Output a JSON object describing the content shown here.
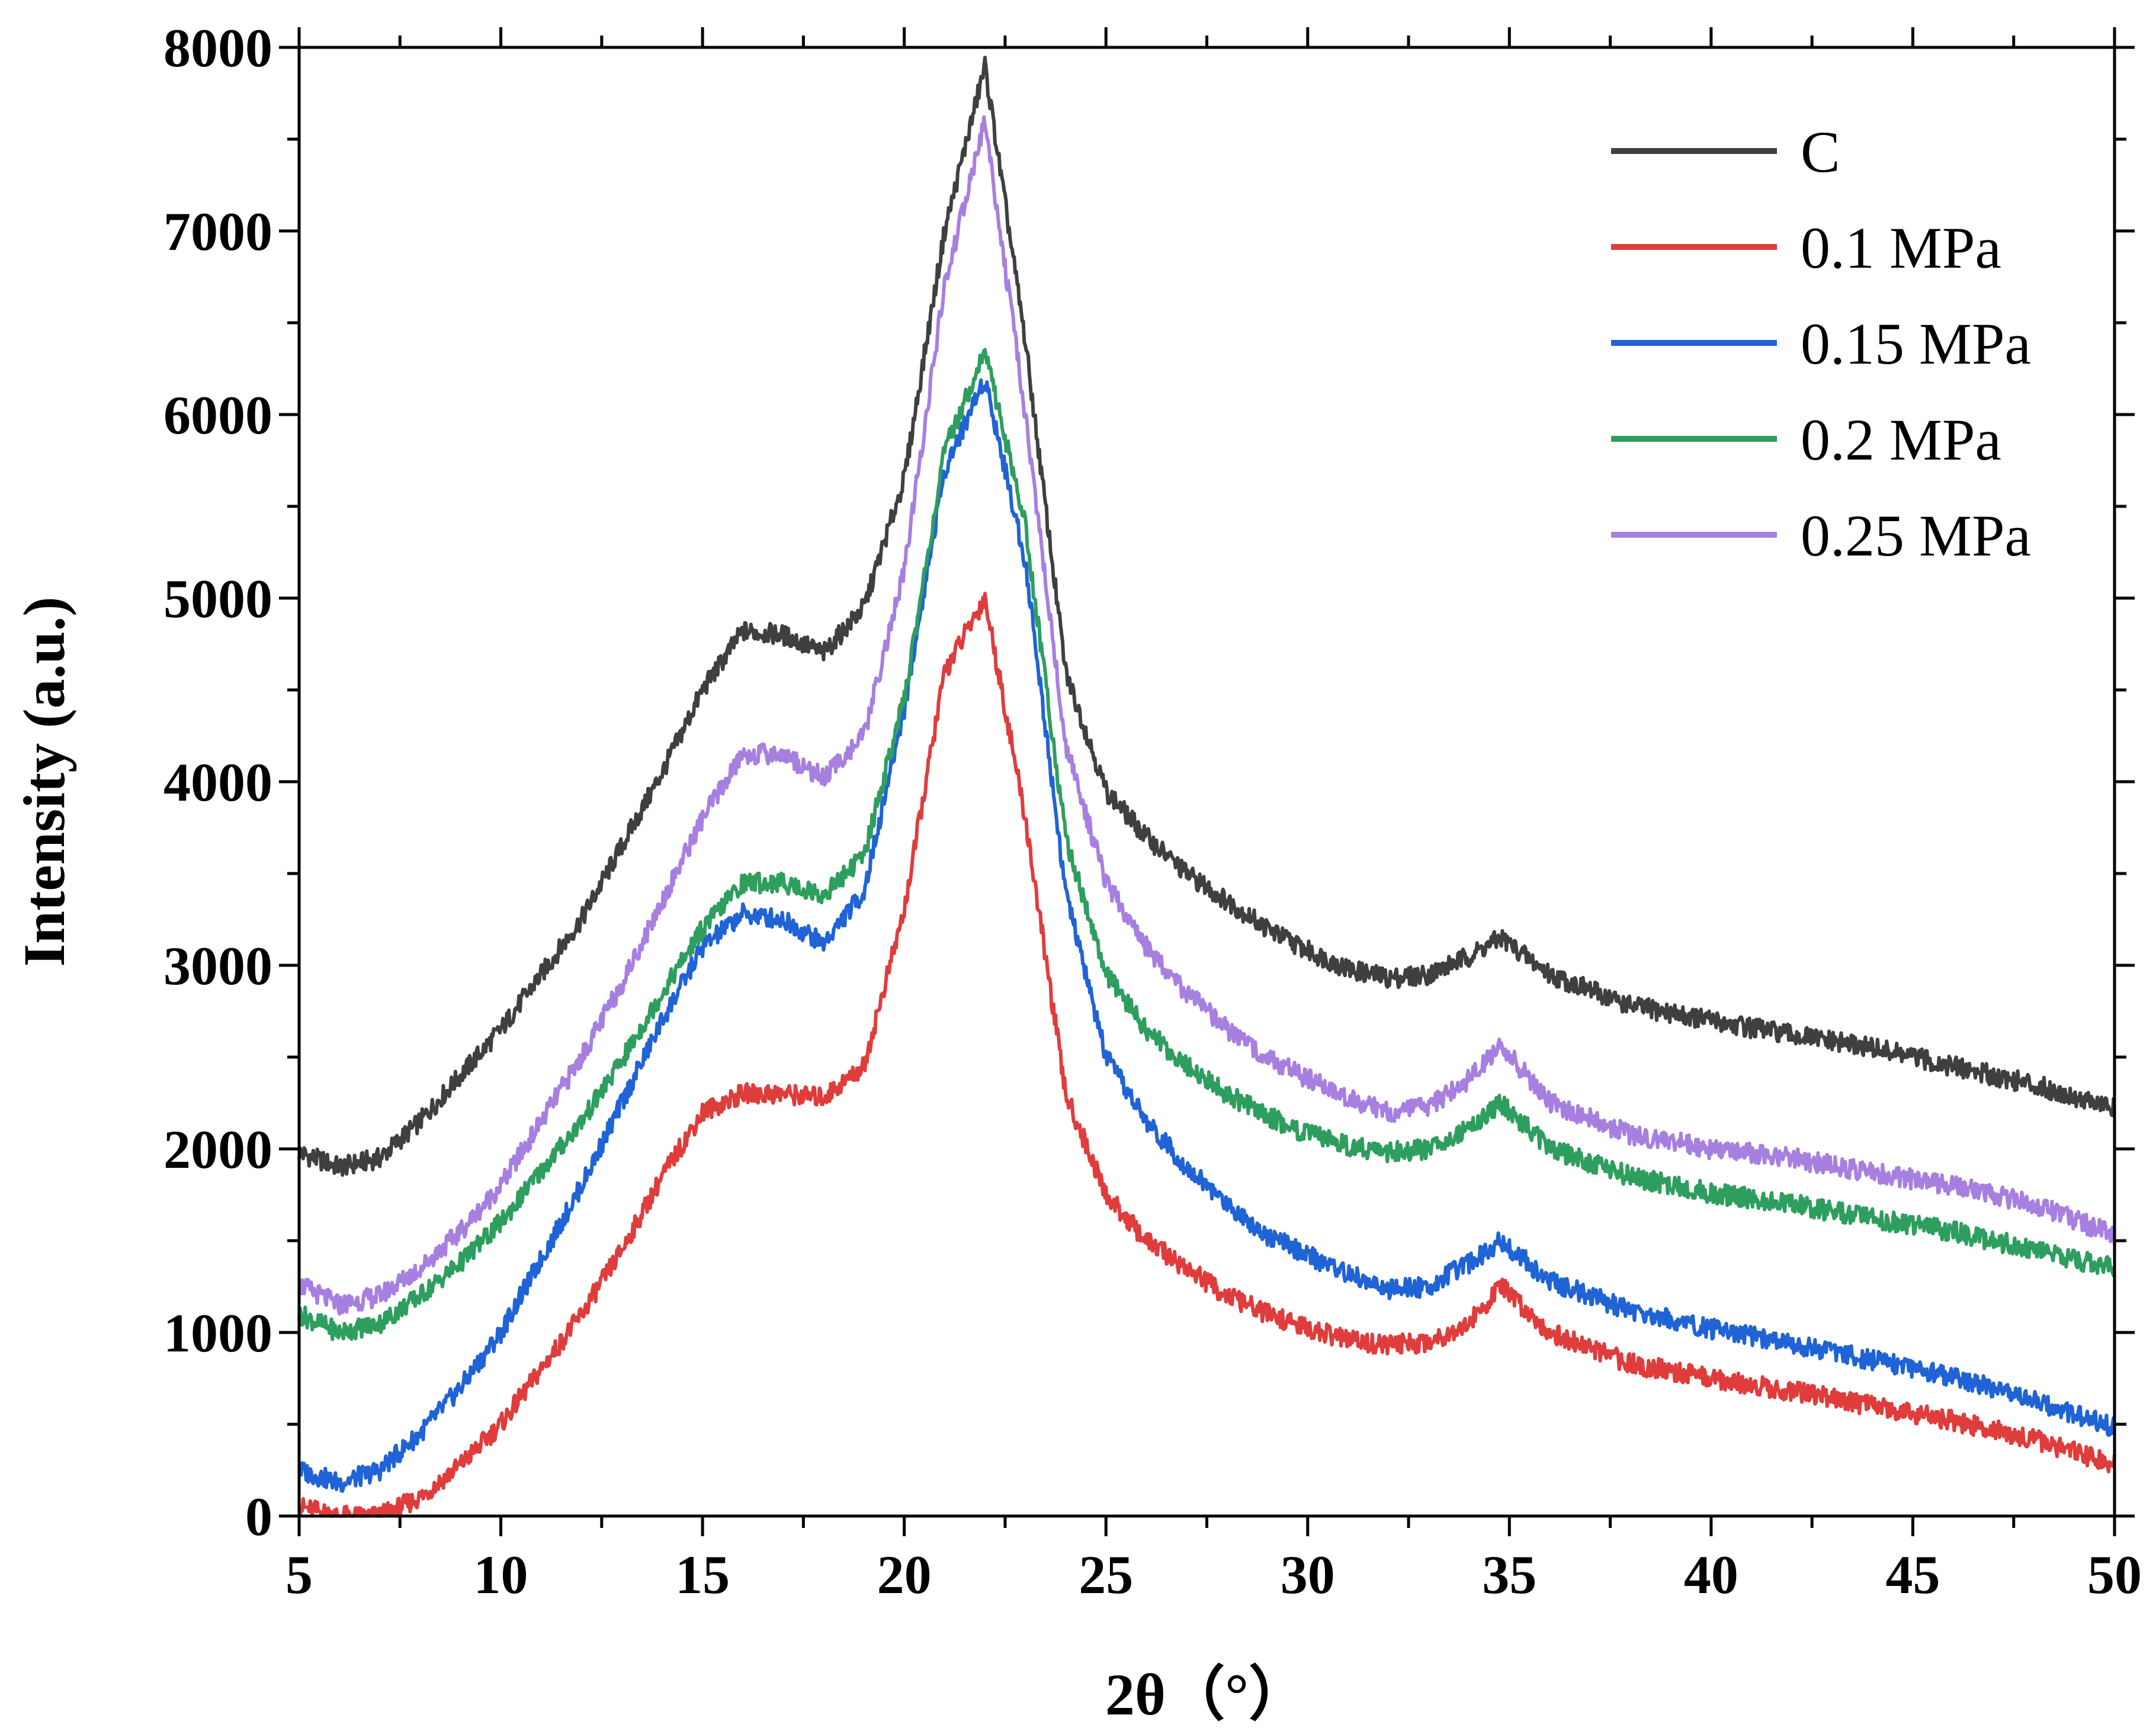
{
  "chart_data": {
    "type": "line",
    "title": "",
    "xlabel": "2θ（°）",
    "ylabel": "Intensity (a.u.)",
    "xlim": [
      5,
      50
    ],
    "ylim": [
      0,
      8000
    ],
    "xticks": [
      5,
      10,
      15,
      20,
      25,
      30,
      35,
      40,
      45,
      50
    ],
    "yticks": [
      0,
      1000,
      2000,
      3000,
      4000,
      5000,
      6000,
      7000,
      8000
    ],
    "grid": false,
    "legend_position": "top-right",
    "series": [
      {
        "name": "C",
        "color": "#3f3f3f",
        "x": [
          5,
          6,
          7,
          8,
          9,
          10,
          11,
          12,
          13,
          14,
          15,
          16,
          17,
          18,
          19,
          20,
          21,
          22,
          23,
          24,
          25,
          26,
          27,
          28,
          29,
          30,
          31,
          32,
          33,
          34,
          34.8,
          36,
          38,
          40,
          42,
          44,
          46,
          48,
          50
        ],
        "y": [
          1980,
          1900,
          1950,
          2150,
          2400,
          2650,
          2950,
          3250,
          3650,
          4050,
          4500,
          4820,
          4800,
          4700,
          4950,
          5650,
          7000,
          7900,
          6400,
          4600,
          3950,
          3700,
          3500,
          3350,
          3200,
          3080,
          2980,
          2930,
          2950,
          3050,
          3150,
          2950,
          2780,
          2700,
          2620,
          2550,
          2450,
          2350,
          2220
        ]
      },
      {
        "name": "0.1 MPa",
        "color": "#e03c3c",
        "x": [
          5,
          6,
          7,
          8,
          9,
          10,
          11,
          12,
          13,
          14,
          15,
          16,
          17,
          18,
          19,
          20,
          21,
          22,
          23,
          24,
          25,
          26,
          27,
          28,
          29,
          30,
          31,
          32,
          33,
          34,
          34.8,
          36,
          38,
          40,
          42,
          44,
          46,
          48,
          50
        ],
        "y": [
          50,
          0,
          0,
          100,
          280,
          500,
          800,
          1100,
          1450,
          1850,
          2200,
          2300,
          2300,
          2280,
          2450,
          3300,
          4600,
          5000,
          3800,
          2300,
          1750,
          1500,
          1350,
          1200,
          1100,
          1020,
          960,
          930,
          950,
          1050,
          1250,
          1000,
          830,
          750,
          680,
          600,
          520,
          420,
          280
        ]
      },
      {
        "name": "0.15 MPa",
        "color": "#1f63d6",
        "x": [
          5,
          6,
          7,
          8,
          9,
          10,
          11,
          12,
          13,
          14,
          15,
          16,
          17,
          18,
          19,
          20,
          21,
          22,
          23,
          24,
          25,
          26,
          27,
          28,
          29,
          30,
          31,
          32,
          33,
          34,
          34.8,
          36,
          38,
          40,
          42,
          44,
          46,
          48,
          50
        ],
        "y": [
          250,
          180,
          250,
          450,
          700,
          1000,
          1400,
          1800,
          2250,
          2700,
          3100,
          3280,
          3250,
          3120,
          3400,
          4400,
          5700,
          6200,
          5200,
          3400,
          2500,
          2150,
          1900,
          1700,
          1530,
          1420,
          1320,
          1230,
          1250,
          1380,
          1500,
          1280,
          1120,
          1020,
          940,
          850,
          760,
          630,
          480
        ]
      },
      {
        "name": "0.2 MPa",
        "color": "#2e9e5e",
        "x": [
          5,
          6,
          7,
          8,
          9,
          10,
          11,
          12,
          13,
          14,
          15,
          16,
          17,
          18,
          19,
          20,
          21,
          22,
          23,
          24,
          25,
          26,
          27,
          28,
          29,
          30,
          31,
          32,
          33,
          34,
          34.8,
          36,
          38,
          40,
          42,
          44,
          46,
          48,
          50
        ],
        "y": [
          1100,
          1000,
          1050,
          1200,
          1380,
          1600,
          1880,
          2150,
          2480,
          2850,
          3200,
          3450,
          3450,
          3380,
          3600,
          4450,
          5800,
          6350,
          5400,
          3700,
          2950,
          2650,
          2450,
          2300,
          2180,
          2080,
          2020,
          1980,
          2000,
          2120,
          2250,
          2000,
          1850,
          1760,
          1700,
          1620,
          1550,
          1450,
          1350
        ]
      },
      {
        "name": "0.25 MPa",
        "color": "#a77fe0",
        "x": [
          5,
          6,
          7,
          8,
          9,
          10,
          11,
          12,
          13,
          14,
          15,
          16,
          17,
          18,
          19,
          20,
          21,
          22,
          23,
          24,
          25,
          26,
          27,
          28,
          29,
          30,
          31,
          32,
          33,
          34,
          34.8,
          36,
          38,
          40,
          42,
          44,
          46,
          48,
          50
        ],
        "y": [
          1260,
          1150,
          1200,
          1350,
          1550,
          1800,
          2150,
          2500,
          2900,
          3350,
          3800,
          4150,
          4150,
          4020,
          4250,
          5150,
          6700,
          7600,
          6000,
          4200,
          3450,
          3100,
          2850,
          2650,
          2500,
          2380,
          2280,
          2200,
          2230,
          2380,
          2560,
          2250,
          2080,
          2000,
          1950,
          1870,
          1800,
          1700,
          1530
        ]
      }
    ]
  }
}
